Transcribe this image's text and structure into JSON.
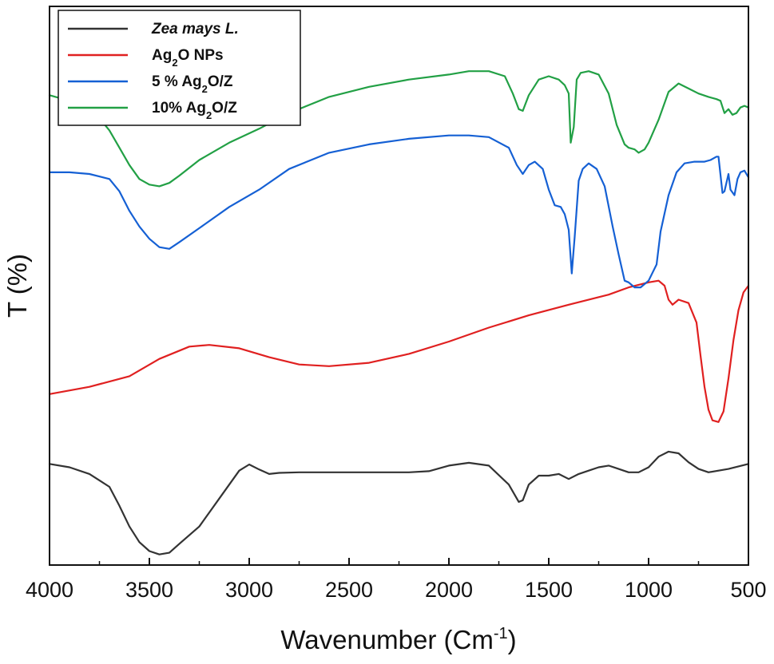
{
  "chart_data": {
    "type": "line",
    "title": "",
    "xlabel": "Wavenumber (Cm",
    "xlabel_sup": "-1",
    "xlabel_close": ")",
    "ylabel": "T (%)",
    "xlim": [
      4000,
      500
    ],
    "ylim": [
      0,
      100
    ],
    "x_reversed": true,
    "x_ticks": [
      4000,
      3500,
      3000,
      2500,
      2000,
      1500,
      1000,
      500
    ],
    "x_tick_labels": [
      "4000",
      "3500",
      "3000",
      "2500",
      "2000",
      "1500",
      "1000",
      "500"
    ],
    "y_ticks_shown": false,
    "legend_position": "top-left",
    "series": [
      {
        "name": "Zea mays L.",
        "label_parts": [
          "Zea mays L."
        ],
        "italic": true,
        "color": "#333333",
        "points": [
          [
            4000,
            18.1
          ],
          [
            3900,
            17.5
          ],
          [
            3800,
            16.3
          ],
          [
            3700,
            14.0
          ],
          [
            3650,
            10.6
          ],
          [
            3600,
            6.9
          ],
          [
            3550,
            4.1
          ],
          [
            3500,
            2.5
          ],
          [
            3450,
            1.9
          ],
          [
            3400,
            2.2
          ],
          [
            3350,
            3.8
          ],
          [
            3250,
            6.9
          ],
          [
            3150,
            11.9
          ],
          [
            3050,
            16.9
          ],
          [
            3000,
            18.0
          ],
          [
            2950,
            17.1
          ],
          [
            2900,
            16.3
          ],
          [
            2850,
            16.5
          ],
          [
            2750,
            16.6
          ],
          [
            2500,
            16.6
          ],
          [
            2200,
            16.6
          ],
          [
            2100,
            16.8
          ],
          [
            2000,
            17.8
          ],
          [
            1900,
            18.3
          ],
          [
            1800,
            17.8
          ],
          [
            1700,
            14.4
          ],
          [
            1650,
            11.3
          ],
          [
            1630,
            11.6
          ],
          [
            1600,
            14.4
          ],
          [
            1550,
            16.0
          ],
          [
            1500,
            16.0
          ],
          [
            1450,
            16.3
          ],
          [
            1400,
            15.4
          ],
          [
            1350,
            16.3
          ],
          [
            1300,
            16.9
          ],
          [
            1250,
            17.5
          ],
          [
            1200,
            17.8
          ],
          [
            1150,
            17.2
          ],
          [
            1100,
            16.6
          ],
          [
            1050,
            16.6
          ],
          [
            1000,
            17.5
          ],
          [
            950,
            19.4
          ],
          [
            900,
            20.3
          ],
          [
            850,
            20.0
          ],
          [
            800,
            18.4
          ],
          [
            750,
            17.2
          ],
          [
            700,
            16.6
          ],
          [
            600,
            17.2
          ],
          [
            500,
            18.1
          ]
        ]
      },
      {
        "name": "Ag2O NPs",
        "label_parts": [
          "Ag",
          "2",
          "O NPs"
        ],
        "italic": false,
        "color": "#e02020",
        "points": [
          [
            4000,
            30.6
          ],
          [
            3800,
            31.9
          ],
          [
            3600,
            33.8
          ],
          [
            3450,
            36.9
          ],
          [
            3300,
            39.1
          ],
          [
            3200,
            39.4
          ],
          [
            3050,
            38.8
          ],
          [
            2900,
            37.2
          ],
          [
            2750,
            35.9
          ],
          [
            2600,
            35.6
          ],
          [
            2400,
            36.2
          ],
          [
            2200,
            37.8
          ],
          [
            2000,
            40.0
          ],
          [
            1800,
            42.5
          ],
          [
            1600,
            44.7
          ],
          [
            1400,
            46.6
          ],
          [
            1200,
            48.4
          ],
          [
            1100,
            49.7
          ],
          [
            1000,
            50.6
          ],
          [
            950,
            50.9
          ],
          [
            920,
            50.0
          ],
          [
            900,
            47.5
          ],
          [
            880,
            46.6
          ],
          [
            850,
            47.5
          ],
          [
            800,
            46.9
          ],
          [
            760,
            43.4
          ],
          [
            740,
            37.5
          ],
          [
            720,
            31.9
          ],
          [
            700,
            27.8
          ],
          [
            680,
            25.9
          ],
          [
            650,
            25.6
          ],
          [
            625,
            27.5
          ],
          [
            600,
            33.4
          ],
          [
            575,
            40.3
          ],
          [
            550,
            45.6
          ],
          [
            525,
            48.8
          ],
          [
            500,
            50.0
          ]
        ]
      },
      {
        "name": "5 % Ag2O/Z",
        "label_parts": [
          "5 % Ag",
          "2",
          "O/Z"
        ],
        "italic": false,
        "color": "#1560d4",
        "points": [
          [
            4000,
            70.3
          ],
          [
            3900,
            70.3
          ],
          [
            3800,
            70.0
          ],
          [
            3700,
            69.1
          ],
          [
            3650,
            66.9
          ],
          [
            3600,
            63.4
          ],
          [
            3550,
            60.6
          ],
          [
            3500,
            58.4
          ],
          [
            3450,
            56.9
          ],
          [
            3400,
            56.6
          ],
          [
            3350,
            57.8
          ],
          [
            3250,
            60.3
          ],
          [
            3100,
            64.1
          ],
          [
            2950,
            67.2
          ],
          [
            2800,
            70.9
          ],
          [
            2600,
            73.8
          ],
          [
            2400,
            75.3
          ],
          [
            2200,
            76.3
          ],
          [
            2000,
            76.9
          ],
          [
            1900,
            76.9
          ],
          [
            1800,
            76.6
          ],
          [
            1700,
            74.7
          ],
          [
            1660,
            71.6
          ],
          [
            1630,
            70.0
          ],
          [
            1600,
            71.6
          ],
          [
            1570,
            72.2
          ],
          [
            1530,
            70.9
          ],
          [
            1500,
            67.2
          ],
          [
            1470,
            64.4
          ],
          [
            1440,
            64.1
          ],
          [
            1420,
            62.8
          ],
          [
            1400,
            60.0
          ],
          [
            1385,
            52.2
          ],
          [
            1370,
            58.8
          ],
          [
            1350,
            68.8
          ],
          [
            1330,
            70.9
          ],
          [
            1300,
            71.9
          ],
          [
            1260,
            70.9
          ],
          [
            1220,
            67.8
          ],
          [
            1180,
            60.6
          ],
          [
            1150,
            55.6
          ],
          [
            1120,
            50.9
          ],
          [
            1100,
            50.6
          ],
          [
            1070,
            49.7
          ],
          [
            1040,
            49.7
          ],
          [
            1000,
            50.9
          ],
          [
            960,
            53.8
          ],
          [
            940,
            59.7
          ],
          [
            900,
            66.2
          ],
          [
            860,
            70.3
          ],
          [
            820,
            71.9
          ],
          [
            770,
            72.2
          ],
          [
            720,
            72.2
          ],
          [
            690,
            72.5
          ],
          [
            660,
            73.1
          ],
          [
            650,
            73.1
          ],
          [
            630,
            66.6
          ],
          [
            620,
            66.9
          ],
          [
            600,
            70.0
          ],
          [
            590,
            67.2
          ],
          [
            570,
            66.2
          ],
          [
            555,
            69.1
          ],
          [
            540,
            70.3
          ],
          [
            520,
            70.6
          ],
          [
            500,
            69.4
          ]
        ]
      },
      {
        "name": "10% Ag2O/Z",
        "label_parts": [
          "10% Ag",
          "2",
          "O/Z"
        ],
        "italic": false,
        "color": "#22a045",
        "points": [
          [
            4000,
            84.1
          ],
          [
            3900,
            83.1
          ],
          [
            3800,
            81.6
          ],
          [
            3750,
            80.0
          ],
          [
            3700,
            77.8
          ],
          [
            3650,
            74.7
          ],
          [
            3600,
            71.6
          ],
          [
            3550,
            69.1
          ],
          [
            3500,
            68.1
          ],
          [
            3450,
            67.8
          ],
          [
            3400,
            68.4
          ],
          [
            3350,
            69.7
          ],
          [
            3250,
            72.5
          ],
          [
            3100,
            75.6
          ],
          [
            2950,
            78.1
          ],
          [
            2800,
            80.9
          ],
          [
            2600,
            83.8
          ],
          [
            2400,
            85.6
          ],
          [
            2200,
            86.9
          ],
          [
            2000,
            87.8
          ],
          [
            1900,
            88.4
          ],
          [
            1800,
            88.4
          ],
          [
            1720,
            87.5
          ],
          [
            1680,
            84.4
          ],
          [
            1650,
            81.6
          ],
          [
            1630,
            81.3
          ],
          [
            1600,
            84.1
          ],
          [
            1550,
            86.9
          ],
          [
            1500,
            87.5
          ],
          [
            1450,
            86.9
          ],
          [
            1420,
            85.9
          ],
          [
            1400,
            84.4
          ],
          [
            1390,
            75.6
          ],
          [
            1375,
            78.4
          ],
          [
            1360,
            86.9
          ],
          [
            1340,
            88.1
          ],
          [
            1300,
            88.4
          ],
          [
            1250,
            87.8
          ],
          [
            1200,
            84.4
          ],
          [
            1160,
            78.8
          ],
          [
            1120,
            75.3
          ],
          [
            1100,
            74.7
          ],
          [
            1070,
            74.4
          ],
          [
            1050,
            73.8
          ],
          [
            1020,
            74.4
          ],
          [
            1000,
            75.6
          ],
          [
            950,
            79.7
          ],
          [
            900,
            84.7
          ],
          [
            850,
            86.2
          ],
          [
            800,
            85.3
          ],
          [
            750,
            84.4
          ],
          [
            700,
            83.8
          ],
          [
            660,
            83.4
          ],
          [
            640,
            83.1
          ],
          [
            620,
            80.9
          ],
          [
            600,
            81.6
          ],
          [
            580,
            80.6
          ],
          [
            560,
            80.9
          ],
          [
            540,
            81.9
          ],
          [
            520,
            82.2
          ],
          [
            500,
            81.9
          ]
        ]
      }
    ]
  }
}
